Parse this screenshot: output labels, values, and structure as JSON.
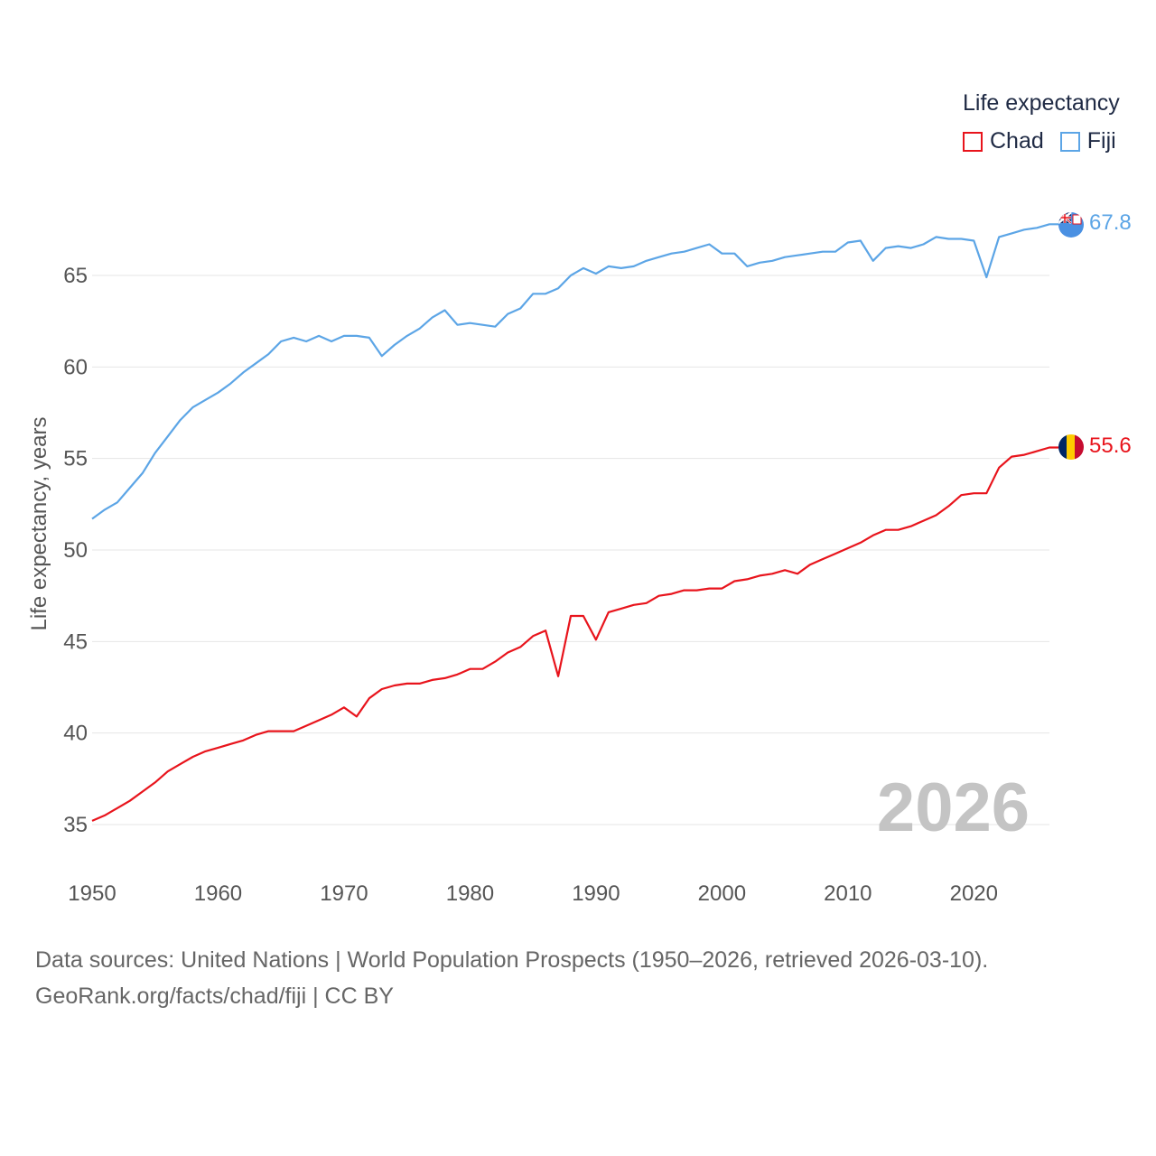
{
  "chart_data": {
    "type": "line",
    "legend_title": "Life expectancy",
    "ylabel": "Life expectancy, years",
    "xlabel": "",
    "year_label": "2026",
    "xlim": [
      1950,
      2026
    ],
    "ylim": [
      33,
      70
    ],
    "xticks": [
      1950,
      1960,
      1970,
      1980,
      1990,
      2000,
      2010,
      2020
    ],
    "yticks": [
      35,
      40,
      45,
      50,
      55,
      60,
      65
    ],
    "legend_position": "top-right",
    "grid": true,
    "x": [
      1950,
      1951,
      1952,
      1953,
      1954,
      1955,
      1956,
      1957,
      1958,
      1959,
      1960,
      1961,
      1962,
      1963,
      1964,
      1965,
      1966,
      1967,
      1968,
      1969,
      1970,
      1971,
      1972,
      1973,
      1974,
      1975,
      1976,
      1977,
      1978,
      1979,
      1980,
      1981,
      1982,
      1983,
      1984,
      1985,
      1986,
      1987,
      1988,
      1989,
      1990,
      1991,
      1992,
      1993,
      1994,
      1995,
      1996,
      1997,
      1998,
      1999,
      2000,
      2001,
      2002,
      2003,
      2004,
      2005,
      2006,
      2007,
      2008,
      2009,
      2010,
      2011,
      2012,
      2013,
      2014,
      2015,
      2016,
      2017,
      2018,
      2019,
      2020,
      2021,
      2022,
      2023,
      2024,
      2025,
      2026
    ],
    "series": [
      {
        "name": "Chad",
        "color": "#e8141c",
        "end_label": "55.6",
        "flag": "chad-flag",
        "values": [
          35.2,
          35.5,
          35.9,
          36.3,
          36.8,
          37.3,
          37.9,
          38.3,
          38.7,
          39.0,
          39.2,
          39.4,
          39.6,
          39.9,
          40.1,
          40.1,
          40.1,
          40.4,
          40.7,
          41.0,
          41.4,
          40.9,
          41.9,
          42.4,
          42.6,
          42.7,
          42.7,
          42.9,
          43.0,
          43.2,
          43.5,
          43.5,
          43.9,
          44.4,
          44.7,
          45.3,
          45.6,
          43.1,
          46.4,
          46.4,
          45.1,
          46.6,
          46.8,
          47.0,
          47.1,
          47.5,
          47.6,
          47.8,
          47.8,
          47.9,
          47.9,
          48.3,
          48.4,
          48.6,
          48.7,
          48.9,
          48.7,
          49.2,
          49.5,
          49.8,
          50.1,
          50.4,
          50.8,
          51.1,
          51.1,
          51.3,
          51.6,
          51.9,
          52.4,
          53.0,
          53.1,
          53.1,
          54.5,
          55.1,
          55.2,
          55.4,
          55.6
        ]
      },
      {
        "name": "Fiji",
        "color": "#5ca5e6",
        "end_label": "67.8",
        "flag": "fiji-flag",
        "values": [
          51.7,
          52.2,
          52.6,
          53.4,
          54.2,
          55.3,
          56.2,
          57.1,
          57.8,
          58.2,
          58.6,
          59.1,
          59.7,
          60.2,
          60.7,
          61.4,
          61.6,
          61.4,
          61.7,
          61.4,
          61.7,
          61.7,
          61.6,
          60.6,
          61.2,
          61.7,
          62.1,
          62.7,
          63.1,
          62.3,
          62.4,
          62.3,
          62.2,
          62.9,
          63.2,
          64.0,
          64.0,
          64.3,
          65.0,
          65.4,
          65.1,
          65.5,
          65.4,
          65.5,
          65.8,
          66.0,
          66.2,
          66.3,
          66.5,
          66.7,
          66.2,
          66.2,
          65.5,
          65.7,
          65.8,
          66.0,
          66.1,
          66.2,
          66.3,
          66.3,
          66.8,
          66.9,
          65.8,
          66.5,
          66.6,
          66.5,
          66.7,
          67.1,
          67.0,
          67.0,
          66.9,
          64.9,
          67.1,
          67.3,
          67.5,
          67.6,
          67.8
        ]
      }
    ]
  },
  "footer": {
    "line1": "Data sources: United Nations | World Population Prospects (1950–2026, retrieved 2026-03-10).",
    "line2": "GeoRank.org/facts/chad/fiji | CC BY"
  }
}
